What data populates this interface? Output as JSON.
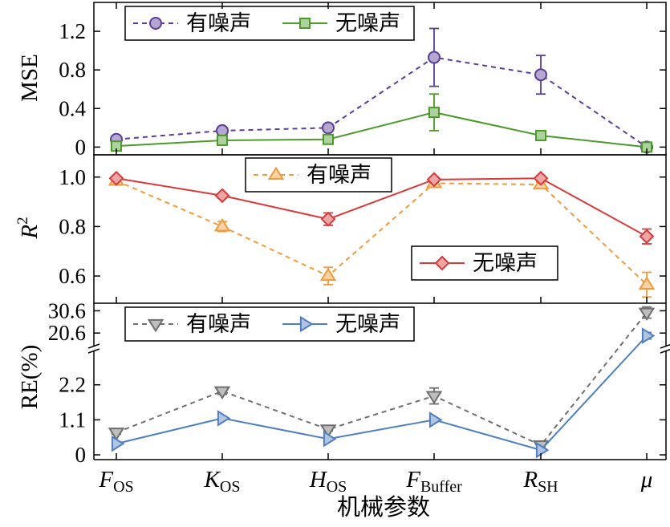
{
  "chart_data": [
    {
      "type": "line",
      "ylabel": "MSE",
      "ylim": [
        -0.08,
        1.5
      ],
      "yticks": [
        "0",
        "0.4",
        "0.8",
        "1.2"
      ],
      "categories": [
        "F_OS",
        "K_OS",
        "H_OS",
        "F_Buffer",
        "R_SH",
        "μ"
      ],
      "legend_position": "top-left",
      "series": [
        {
          "name": "有噪声",
          "color": "#5b3c96",
          "marker": "circle",
          "linestyle": "dashed",
          "values": [
            0.08,
            0.17,
            0.2,
            0.93,
            0.75,
            0.0
          ],
          "errors": [
            0.02,
            0.02,
            0.02,
            0.3,
            0.2,
            0.01
          ]
        },
        {
          "name": "无噪声",
          "color": "#4c9a2a",
          "marker": "square",
          "linestyle": "solid",
          "values": [
            0.01,
            0.07,
            0.08,
            0.36,
            0.12,
            0.0
          ],
          "errors": [
            0.01,
            0.01,
            0.01,
            0.19,
            0.01,
            0.01
          ]
        }
      ]
    },
    {
      "type": "line",
      "ylabel": "R",
      "ylabel_superscript": "2",
      "ylim": [
        0.49,
        1.09
      ],
      "yticks": [
        "0.6",
        "0.8",
        "1.0"
      ],
      "categories": [
        "F_OS",
        "K_OS",
        "H_OS",
        "F_Buffer",
        "R_SH",
        "μ"
      ],
      "series": [
        {
          "name": "有噪声",
          "color": "#ef9a3c",
          "marker": "triangle-up",
          "linestyle": "dashed",
          "legend_position": "top-center",
          "values": [
            0.985,
            0.8,
            0.6,
            0.975,
            0.97,
            0.565
          ],
          "errors": [
            0.01,
            0.02,
            0.035,
            0.01,
            0.01,
            0.05
          ]
        },
        {
          "name": "无噪声",
          "color": "#d63a3a",
          "marker": "diamond",
          "linestyle": "solid",
          "legend_position": "lower-right",
          "values": [
            0.995,
            0.925,
            0.83,
            0.99,
            0.995,
            0.76
          ],
          "errors": [
            0.01,
            0.01,
            0.025,
            0.01,
            0.01,
            0.03
          ]
        }
      ]
    },
    {
      "type": "line",
      "ylabel": "RE(%)",
      "broken_axis": true,
      "ylim_lower": [
        -0.15,
        3.0
      ],
      "ylim_upper": [
        16,
        34
      ],
      "yticks_lower": [
        "0",
        "1.1",
        "2.2"
      ],
      "yticks_upper": [
        "20.6",
        "30.6"
      ],
      "categories": [
        "F_OS",
        "K_OS",
        "H_OS",
        "F_Buffer",
        "R_SH",
        "μ"
      ],
      "xlabel": "机械参数",
      "legend_position": "top-left",
      "series": [
        {
          "name": "有噪声",
          "color": "#6e6e6e",
          "marker": "triangle-down",
          "linestyle": "dashed",
          "values": [
            0.7,
            2.0,
            0.8,
            1.85,
            0.3,
            29.8
          ],
          "errors": [
            0.05,
            0.1,
            0.05,
            0.25,
            0.05,
            2.5
          ]
        },
        {
          "name": "无噪声",
          "color": "#4f7fc0",
          "marker": "triangle-right",
          "linestyle": "solid",
          "values": [
            0.35,
            1.15,
            0.5,
            1.1,
            0.15,
            19.4
          ],
          "errors": [
            0.05,
            0.05,
            0.05,
            0.05,
            0.05,
            1.5
          ]
        }
      ]
    }
  ],
  "x_axis": {
    "ticks": [
      {
        "main": "F",
        "sub": "OS"
      },
      {
        "main": "K",
        "sub": "OS"
      },
      {
        "main": "H",
        "sub": "OS"
      },
      {
        "main": "F",
        "sub": "Buffer"
      },
      {
        "main": "R",
        "sub": "SH"
      },
      {
        "main": "μ",
        "sub": ""
      }
    ],
    "label": "机械参数"
  }
}
